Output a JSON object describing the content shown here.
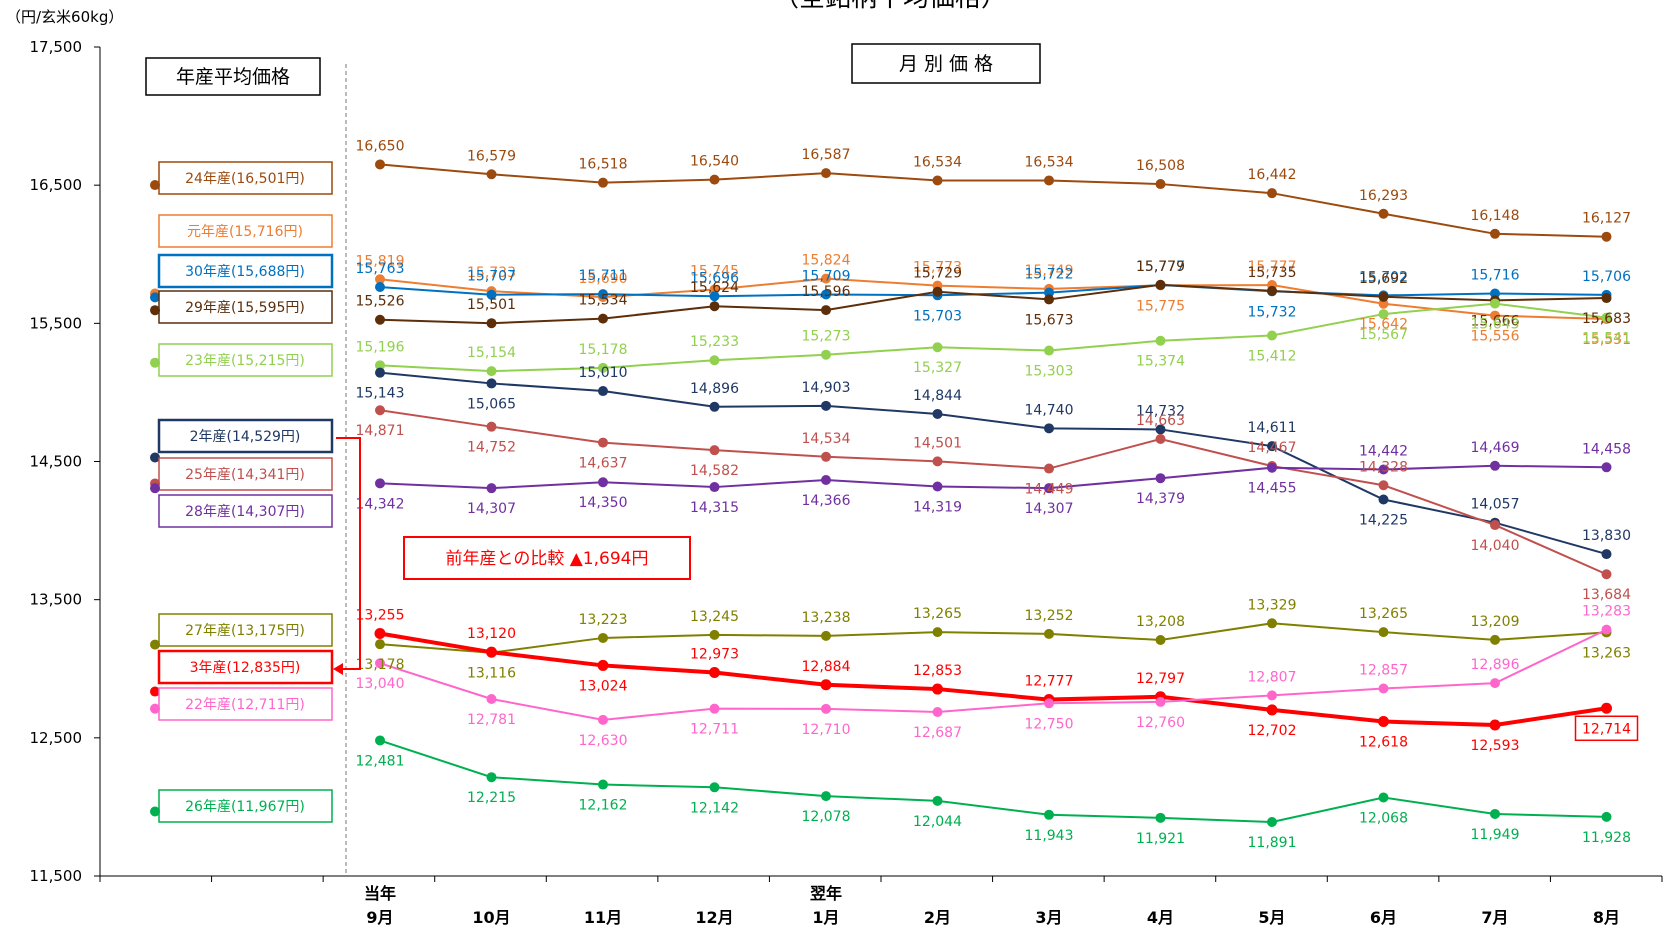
{
  "chart_data": {
    "type": "line",
    "title": "（全銘柄平均価格）",
    "y_unit": "（円/玄米60kg）",
    "ylim": [
      11500,
      17500
    ],
    "yticks": [
      11500,
      12500,
      13500,
      14500,
      15500,
      16500,
      17500
    ],
    "ytick_labels": [
      "11,500",
      "12,500",
      "13,500",
      "14,500",
      "15,500",
      "16,500",
      "17,500"
    ],
    "annual_box_label": "年産平均価格",
    "monthly_box_label": "月 別 価 格",
    "x_year_labels": [
      {
        "label": "当年",
        "month_index": 0
      },
      {
        "label": "翌年",
        "month_index": 4
      }
    ],
    "categories": [
      "9月",
      "10月",
      "11月",
      "12月",
      "1月",
      "2月",
      "3月",
      "4月",
      "5月",
      "6月",
      "7月",
      "8月"
    ],
    "comparison_label": "前年産との比較 ▲1,694円",
    "series": [
      {
        "name": "24年産",
        "legend": "24年産(16,501円)",
        "annual": 16501,
        "color": "#9C4A0E",
        "values": [
          16650,
          16579,
          16518,
          16540,
          16587,
          16534,
          16534,
          16508,
          16442,
          16293,
          16148,
          16127
        ]
      },
      {
        "name": "元年産",
        "legend": "元年産(15,716円)",
        "annual": 15716,
        "color": "#ED7D31",
        "values": [
          15819,
          15733,
          15690,
          15745,
          15824,
          15773,
          15749,
          15775,
          15777,
          15642,
          15556,
          15531
        ]
      },
      {
        "name": "30年産",
        "legend": "30年産(15,688円)",
        "annual": 15688,
        "color": "#0070C0",
        "values": [
          15763,
          15707,
          15711,
          15696,
          15709,
          15703,
          15722,
          15777,
          15732,
          15702,
          15716,
          15706
        ]
      },
      {
        "name": "29年産",
        "legend": "29年産(15,595円)",
        "annual": 15595,
        "color": "#5C2E0A",
        "values": [
          15526,
          15501,
          15534,
          15624,
          15596,
          15729,
          15673,
          15779,
          15735,
          15692,
          15666,
          15683
        ]
      },
      {
        "name": "23年産",
        "legend": "23年産(15,215円)",
        "annual": 15215,
        "color": "#92D050",
        "values": [
          15196,
          15154,
          15178,
          15233,
          15273,
          15327,
          15303,
          15374,
          15412,
          15567,
          15643,
          15541
        ]
      },
      {
        "name": "2年産",
        "legend": "2年産(14,529円)",
        "annual": 14529,
        "color": "#1F3864",
        "values": [
          15143,
          15065,
          15010,
          14896,
          14903,
          14844,
          14740,
          14732,
          14611,
          14225,
          14057,
          13830
        ]
      },
      {
        "name": "25年産",
        "legend": "25年産(14,341円)",
        "annual": 14341,
        "color": "#C0504D",
        "values": [
          14871,
          14752,
          14637,
          14582,
          14534,
          14501,
          14449,
          14663,
          14467,
          14328,
          14040,
          13684
        ]
      },
      {
        "name": "28年産",
        "legend": "28年産(14,307円)",
        "annual": 14307,
        "color": "#7030A0",
        "values": [
          14342,
          14307,
          14350,
          14315,
          14366,
          14319,
          14307,
          14379,
          14455,
          14442,
          14469,
          14458
        ]
      },
      {
        "name": "27年産",
        "legend": "27年産(13,175円)",
        "annual": 13175,
        "color": "#808000",
        "values": [
          13178,
          13116,
          13223,
          13245,
          13238,
          13265,
          13252,
          13208,
          13329,
          13265,
          13209,
          13263
        ]
      },
      {
        "name": "3年産",
        "legend": "3年産(12,835円)",
        "annual": 12835,
        "color": "#FF0000",
        "values": [
          13255,
          13120,
          13024,
          12973,
          12884,
          12853,
          12777,
          12797,
          12702,
          12618,
          12593,
          12714
        ]
      },
      {
        "name": "22年産",
        "legend": "22年産(12,711円)",
        "annual": 12711,
        "color": "#FF66CC",
        "values": [
          13040,
          12781,
          12630,
          12711,
          12710,
          12687,
          12750,
          12760,
          12807,
          12857,
          12896,
          13283
        ]
      },
      {
        "name": "26年産",
        "legend": "26年産(11,967円)",
        "annual": 11967,
        "color": "#00B050",
        "values": [
          12481,
          12215,
          12162,
          12142,
          12078,
          12044,
          11943,
          11921,
          11891,
          12068,
          11949,
          11928
        ]
      }
    ],
    "grid": false,
    "legend": "left"
  }
}
